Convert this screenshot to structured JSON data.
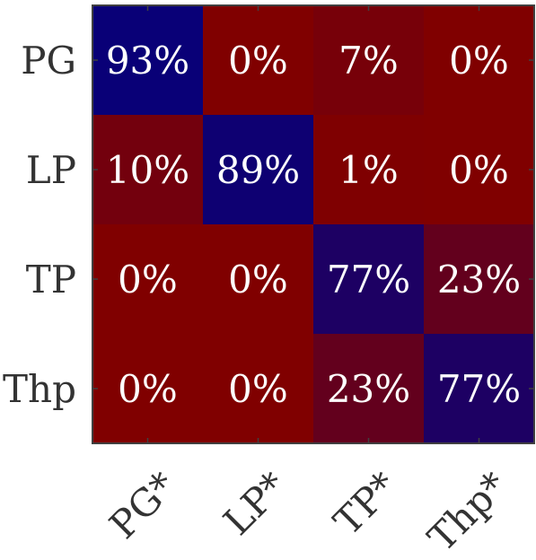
{
  "chart_data": {
    "type": "heatmap",
    "title": "",
    "xlabel": "",
    "ylabel": "",
    "row_labels": [
      "PG",
      "LP",
      "TP",
      "Thp"
    ],
    "col_labels": [
      "PG*",
      "LP*",
      "TP*",
      "Thp*"
    ],
    "values": [
      [
        93,
        0,
        7,
        0
      ],
      [
        10,
        89,
        1,
        0
      ],
      [
        0,
        0,
        77,
        23
      ],
      [
        0,
        0,
        23,
        77
      ]
    ],
    "cell_text": [
      [
        "93%",
        "0%",
        "7%",
        "0%"
      ],
      [
        "10%",
        "89%",
        "1%",
        "0%"
      ],
      [
        "0%",
        "0%",
        "77%",
        "23%"
      ],
      [
        "0%",
        "0%",
        "23%",
        "77%"
      ]
    ],
    "value_range": [
      0,
      100
    ],
    "colormap": {
      "low": "#800000",
      "high": "#000080"
    },
    "axis_color": "#404040",
    "grid": false,
    "legend": "none"
  }
}
